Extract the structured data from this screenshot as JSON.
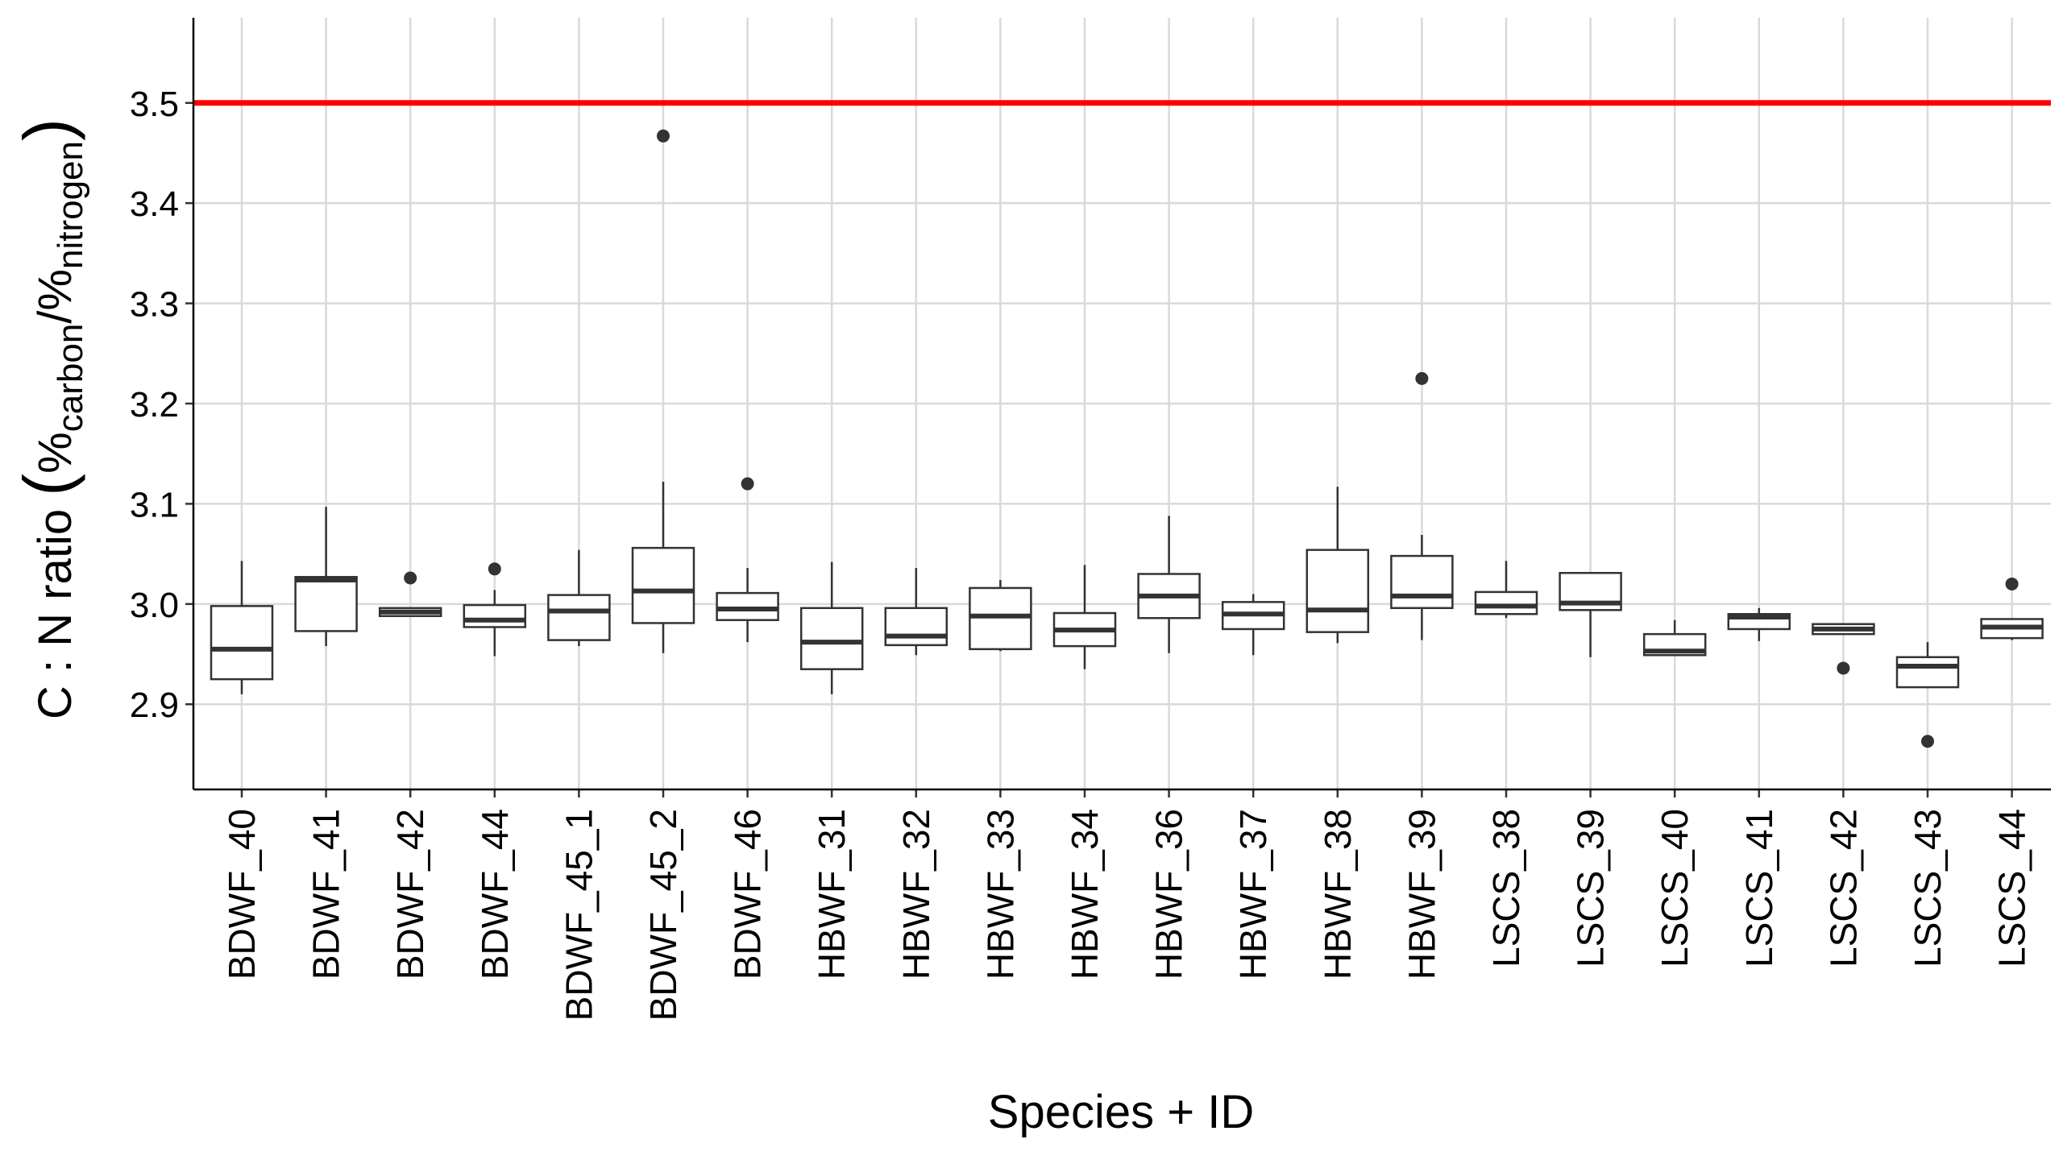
{
  "chart_data": {
    "type": "box",
    "xlabel": "Species + ID",
    "ylabel": {
      "prefix": "C : N ratio ",
      "numerator_symbol": "%",
      "numerator_subscript": "carbon",
      "slash": "/",
      "denominator_symbol": "%",
      "denominator_subscript": "nitrogen"
    },
    "ylim": [
      2.815,
      3.585
    ],
    "yticks": [
      "2.9",
      "3.0",
      "3.1",
      "3.2",
      "3.3",
      "3.4",
      "3.5"
    ],
    "grid": true,
    "reference_line": {
      "y": 3.5,
      "color": "#ff0000"
    },
    "categories": [
      "BDWF_40",
      "BDWF_41",
      "BDWF_42",
      "BDWF_44",
      "BDWF_45_1",
      "BDWF_45_2",
      "BDWF_46",
      "HBWF_31",
      "HBWF_32",
      "HBWF_33",
      "HBWF_34",
      "HBWF_36",
      "HBWF_37",
      "HBWF_38",
      "HBWF_39",
      "LSCS_38",
      "LSCS_39",
      "LSCS_40",
      "LSCS_41",
      "LSCS_42",
      "LSCS_43",
      "LSCS_44"
    ],
    "boxes": [
      {
        "whisker_low": 2.91,
        "q1": 2.925,
        "median": 2.955,
        "q3": 2.998,
        "whisker_high": 3.043,
        "outliers": []
      },
      {
        "whisker_low": 2.958,
        "q1": 2.973,
        "median": 3.024,
        "q3": 3.027,
        "whisker_high": 3.097,
        "outliers": []
      },
      {
        "whisker_low": 2.988,
        "q1": 2.988,
        "median": 2.992,
        "q3": 2.996,
        "whisker_high": 2.996,
        "outliers": [
          3.026
        ]
      },
      {
        "whisker_low": 2.948,
        "q1": 2.977,
        "median": 2.984,
        "q3": 2.999,
        "whisker_high": 3.014,
        "outliers": [
          3.035
        ]
      },
      {
        "whisker_low": 2.958,
        "q1": 2.964,
        "median": 2.993,
        "q3": 3.009,
        "whisker_high": 3.054,
        "outliers": []
      },
      {
        "whisker_low": 2.951,
        "q1": 2.981,
        "median": 3.013,
        "q3": 3.056,
        "whisker_high": 3.122,
        "outliers": [
          3.467
        ]
      },
      {
        "whisker_low": 2.962,
        "q1": 2.984,
        "median": 2.995,
        "q3": 3.011,
        "whisker_high": 3.036,
        "outliers": [
          3.12
        ]
      },
      {
        "whisker_low": 2.91,
        "q1": 2.935,
        "median": 2.962,
        "q3": 2.996,
        "whisker_high": 3.042,
        "outliers": []
      },
      {
        "whisker_low": 2.949,
        "q1": 2.959,
        "median": 2.968,
        "q3": 2.996,
        "whisker_high": 3.036,
        "outliers": []
      },
      {
        "whisker_low": 2.953,
        "q1": 2.955,
        "median": 2.988,
        "q3": 3.016,
        "whisker_high": 3.024,
        "outliers": []
      },
      {
        "whisker_low": 2.935,
        "q1": 2.958,
        "median": 2.974,
        "q3": 2.991,
        "whisker_high": 3.039,
        "outliers": []
      },
      {
        "whisker_low": 2.951,
        "q1": 2.986,
        "median": 3.008,
        "q3": 3.03,
        "whisker_high": 3.088,
        "outliers": []
      },
      {
        "whisker_low": 2.949,
        "q1": 2.975,
        "median": 2.99,
        "q3": 3.002,
        "whisker_high": 3.01,
        "outliers": []
      },
      {
        "whisker_low": 2.961,
        "q1": 2.972,
        "median": 2.994,
        "q3": 3.054,
        "whisker_high": 3.117,
        "outliers": []
      },
      {
        "whisker_low": 2.964,
        "q1": 2.996,
        "median": 3.008,
        "q3": 3.048,
        "whisker_high": 3.069,
        "outliers": [
          3.225
        ]
      },
      {
        "whisker_low": 2.986,
        "q1": 2.99,
        "median": 2.998,
        "q3": 3.012,
        "whisker_high": 3.043,
        "outliers": []
      },
      {
        "whisker_low": 2.947,
        "q1": 2.994,
        "median": 3.001,
        "q3": 3.031,
        "whisker_high": 3.031,
        "outliers": []
      },
      {
        "whisker_low": 2.948,
        "q1": 2.949,
        "median": 2.953,
        "q3": 2.97,
        "whisker_high": 2.984,
        "outliers": []
      },
      {
        "whisker_low": 2.963,
        "q1": 2.975,
        "median": 2.987,
        "q3": 2.99,
        "whisker_high": 2.996,
        "outliers": []
      },
      {
        "whisker_low": 2.97,
        "q1": 2.97,
        "median": 2.975,
        "q3": 2.98,
        "whisker_high": 2.98,
        "outliers": [
          2.936
        ]
      },
      {
        "whisker_low": 2.917,
        "q1": 2.917,
        "median": 2.938,
        "q3": 2.947,
        "whisker_high": 2.962,
        "outliers": [
          2.863
        ]
      },
      {
        "whisker_low": 2.964,
        "q1": 2.966,
        "median": 2.977,
        "q3": 2.985,
        "whisker_high": 2.985,
        "outliers": [
          3.02
        ]
      }
    ]
  }
}
